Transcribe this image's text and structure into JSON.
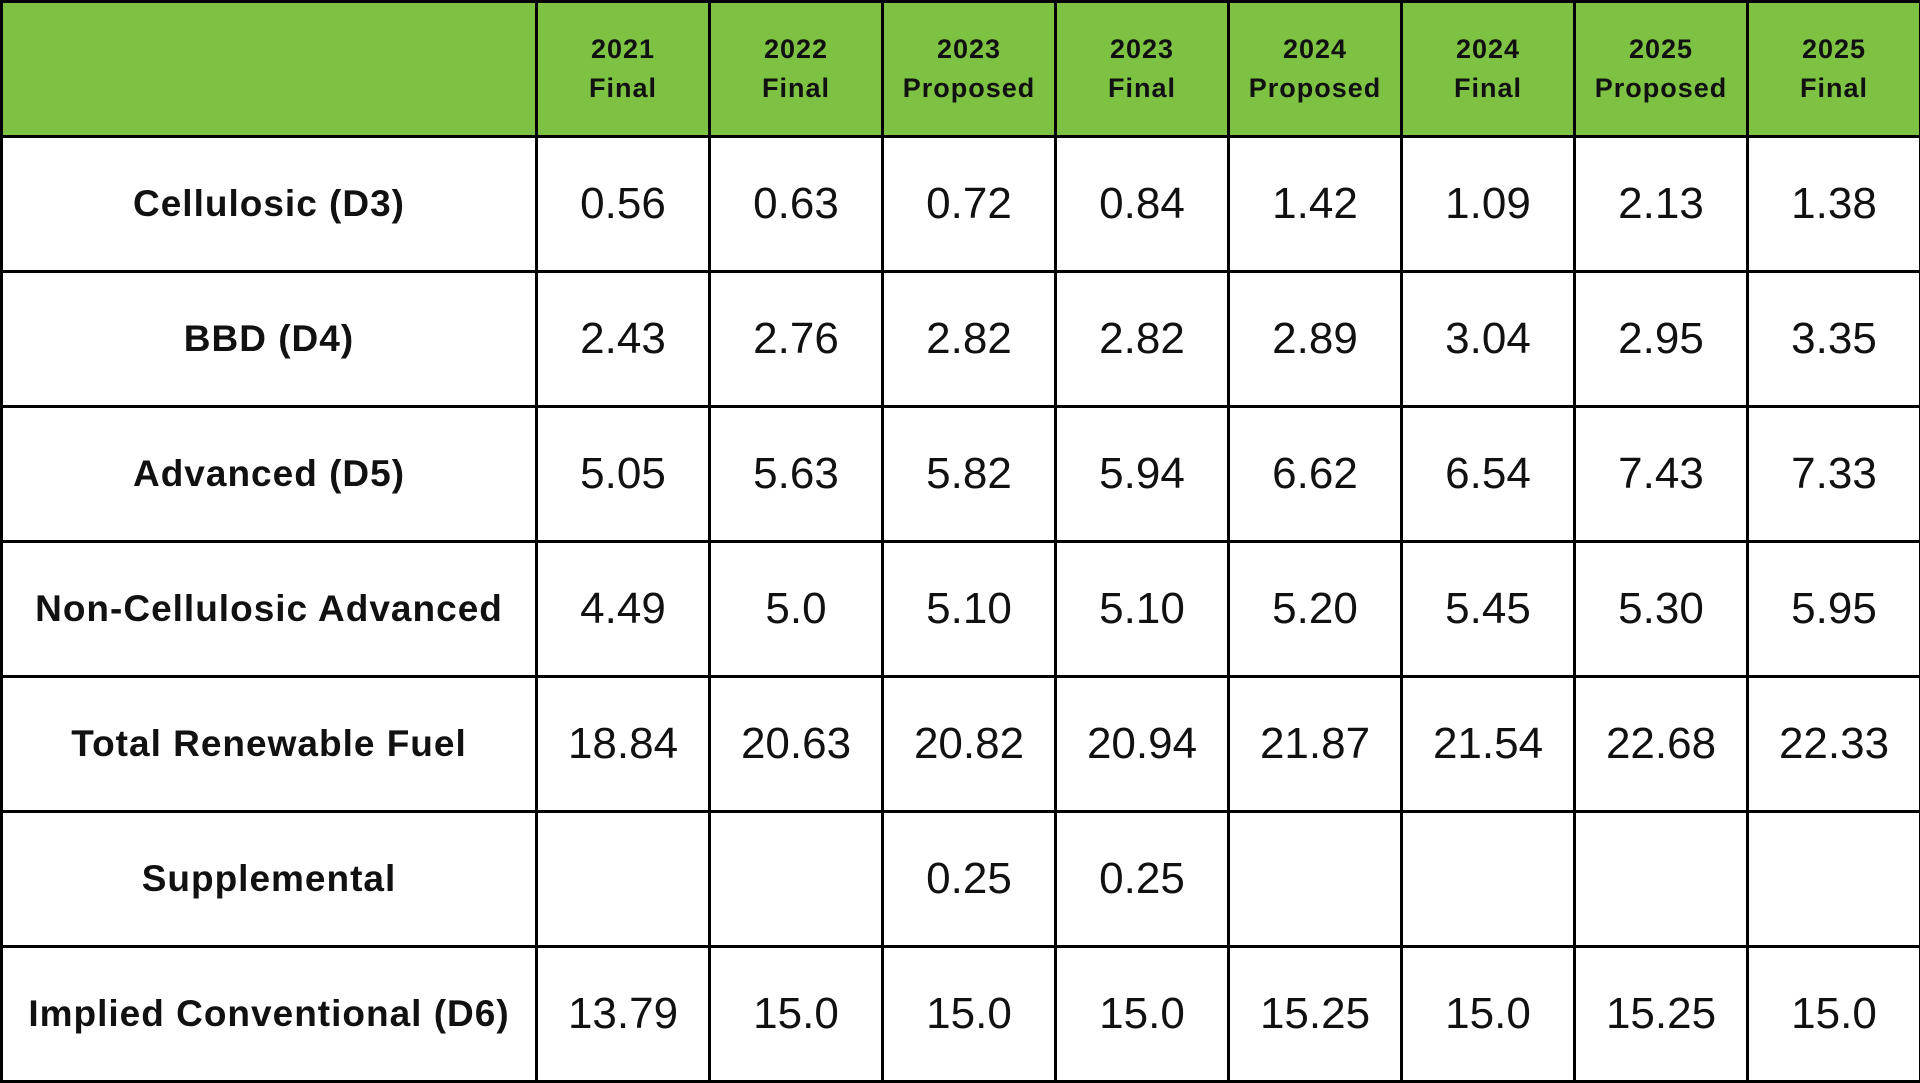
{
  "colors": {
    "header_bg": "#7dc242",
    "grid": "#000000",
    "body_bg": "#ffffff",
    "text": "#111111"
  },
  "chart_data": {
    "type": "table",
    "column_headers": [
      {
        "year": "2021",
        "status": "Final"
      },
      {
        "year": "2022",
        "status": "Final"
      },
      {
        "year": "2023",
        "status": "Proposed"
      },
      {
        "year": "2023",
        "status": "Final"
      },
      {
        "year": "2024",
        "status": "Proposed"
      },
      {
        "year": "2024",
        "status": "Final"
      },
      {
        "year": "2025",
        "status": "Proposed"
      },
      {
        "year": "2025",
        "status": "Final"
      }
    ],
    "rows": [
      {
        "label": "Cellulosic (D3)",
        "values": [
          "0.56",
          "0.63",
          "0.72",
          "0.84",
          "1.42",
          "1.09",
          "2.13",
          "1.38"
        ]
      },
      {
        "label": "BBD (D4)",
        "values": [
          "2.43",
          "2.76",
          "2.82",
          "2.82",
          "2.89",
          "3.04",
          "2.95",
          "3.35"
        ]
      },
      {
        "label": "Advanced (D5)",
        "values": [
          "5.05",
          "5.63",
          "5.82",
          "5.94",
          "6.62",
          "6.54",
          "7.43",
          "7.33"
        ]
      },
      {
        "label": "Non-Cellulosic Advanced",
        "values": [
          "4.49",
          "5.0",
          "5.10",
          "5.10",
          "5.20",
          "5.45",
          "5.30",
          "5.95"
        ]
      },
      {
        "label": "Total Renewable Fuel",
        "values": [
          "18.84",
          "20.63",
          "20.82",
          "20.94",
          "21.87",
          "21.54",
          "22.68",
          "22.33"
        ]
      },
      {
        "label": "Supplemental",
        "values": [
          "",
          "",
          "0.25",
          "0.25",
          "",
          "",
          "",
          ""
        ]
      },
      {
        "label": "Implied Conventional (D6)",
        "values": [
          "13.79",
          "15.0",
          "15.0",
          "15.0",
          "15.25",
          "15.0",
          "15.25",
          "15.0"
        ]
      }
    ]
  }
}
